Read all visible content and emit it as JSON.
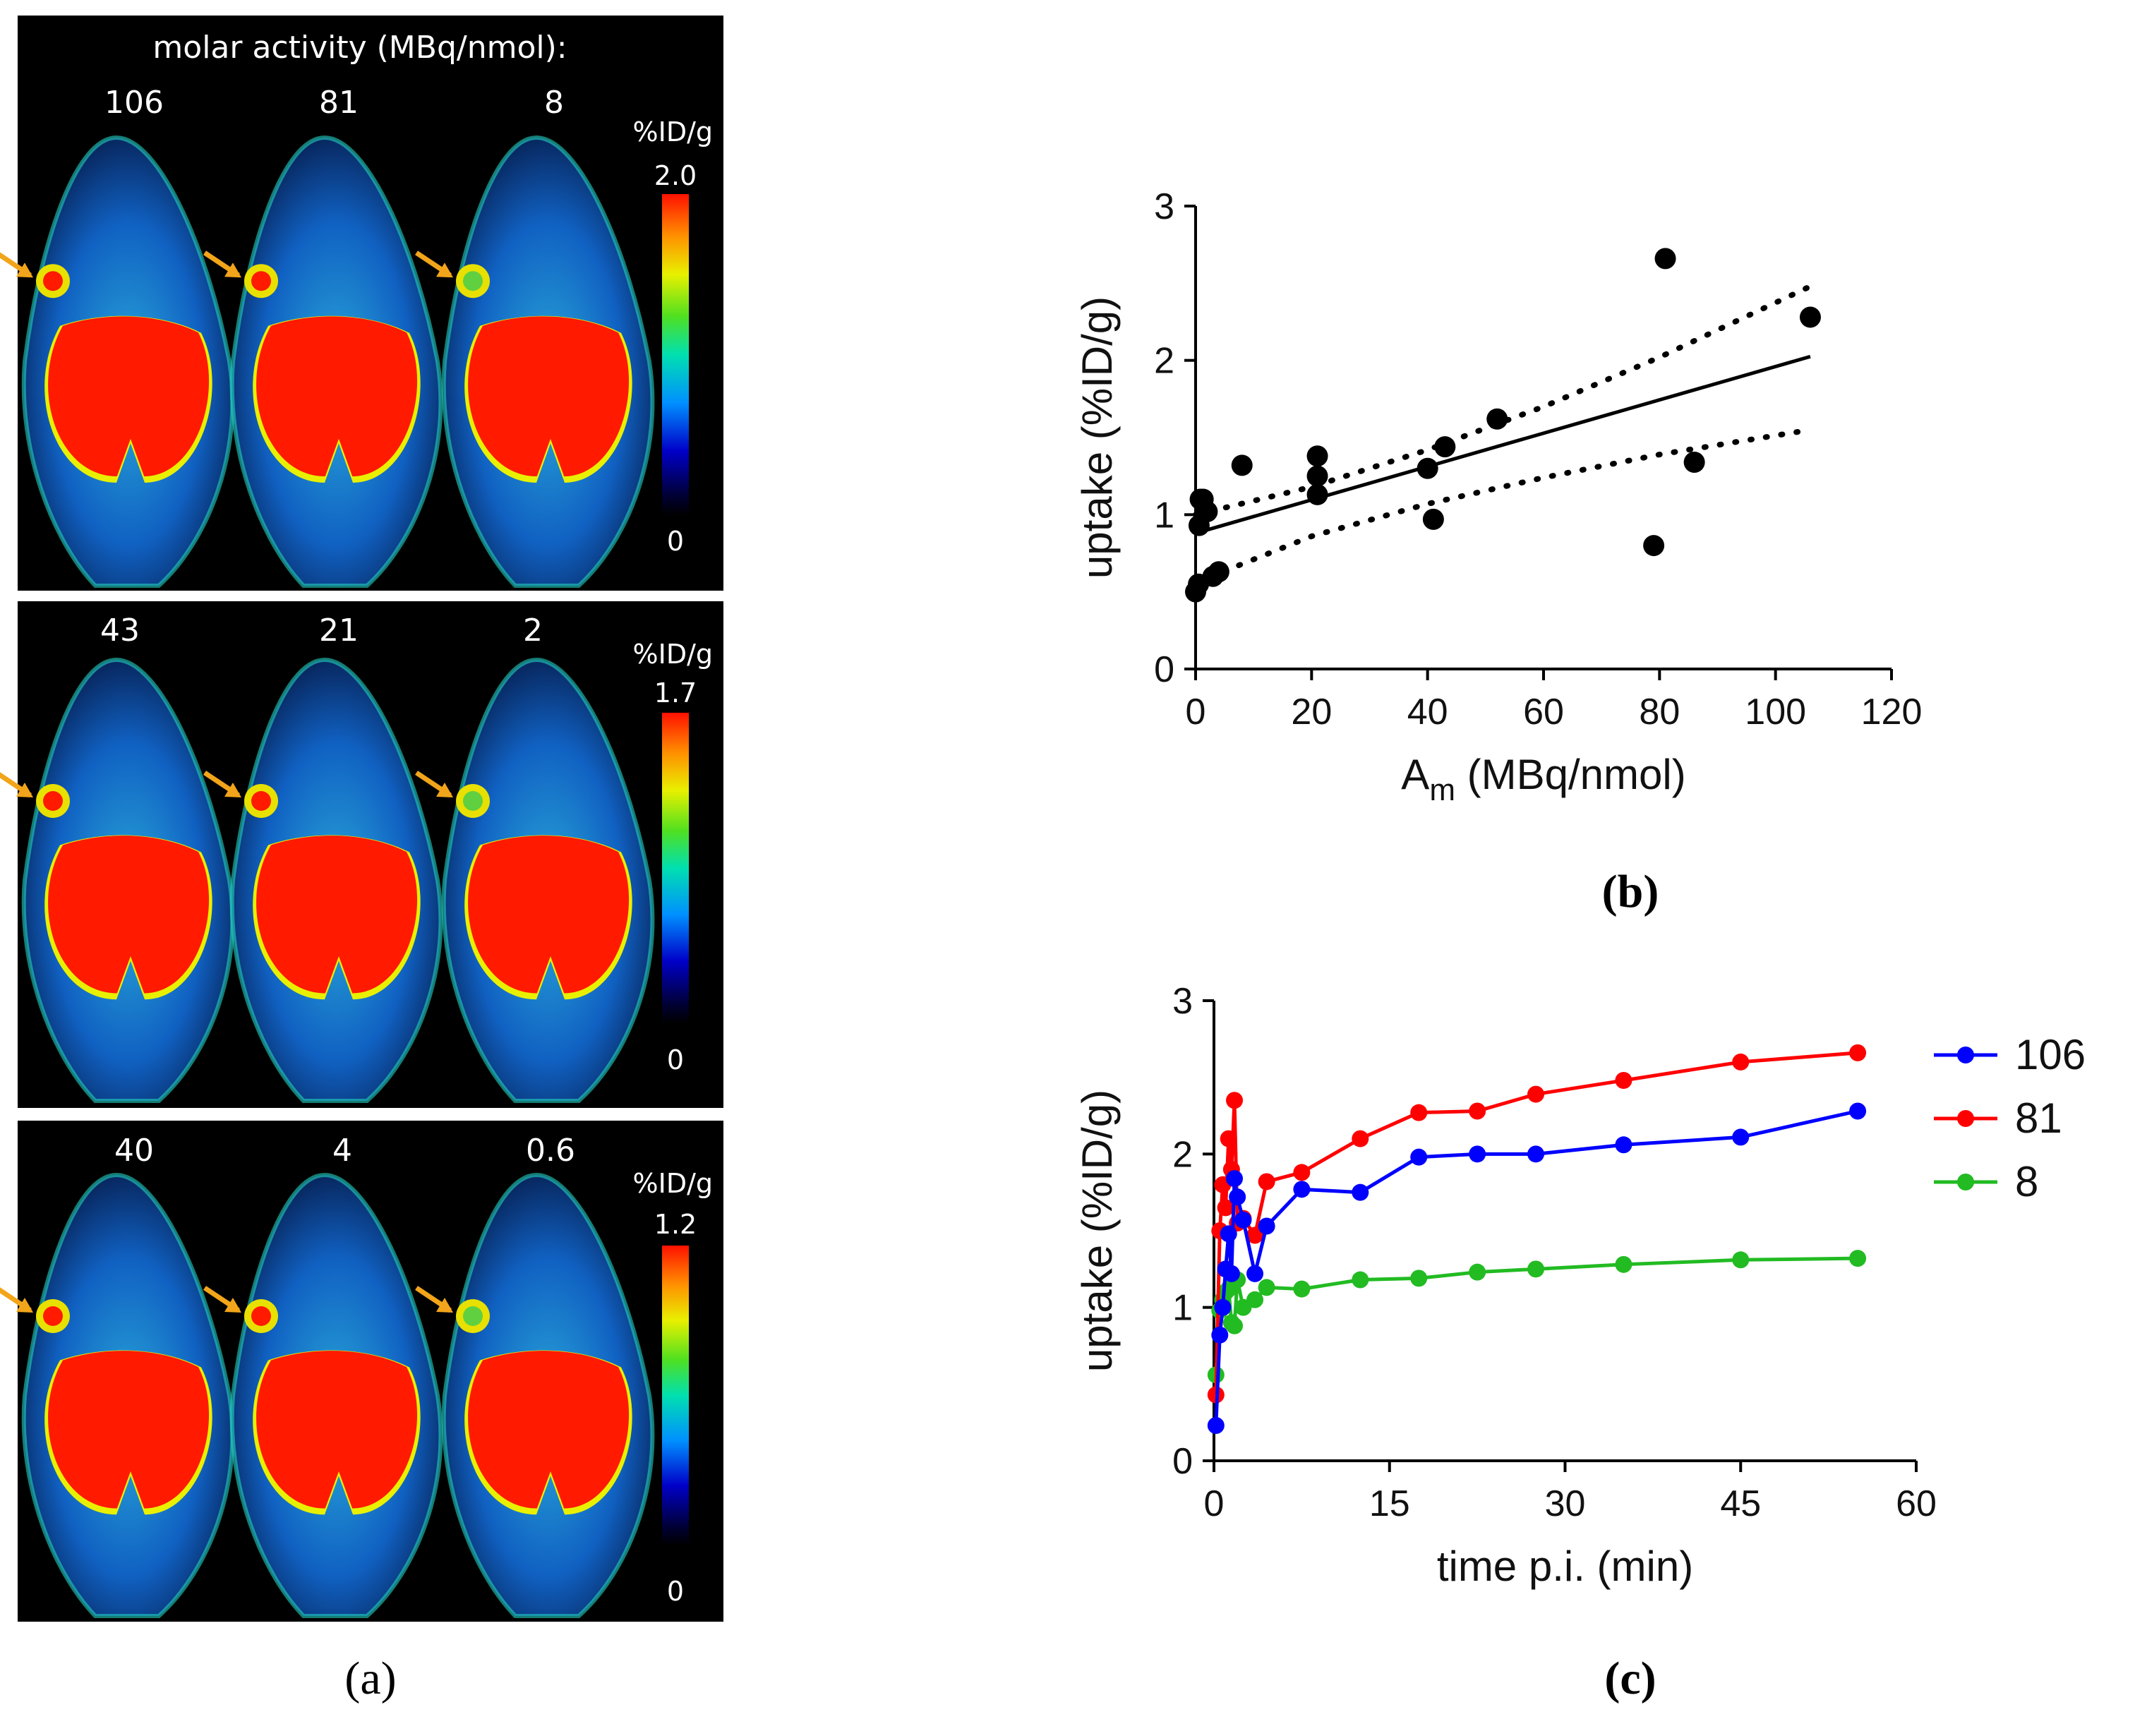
{
  "panel_a": {
    "label": "(a)",
    "title": "molar activity (MBq/nmol):",
    "unit_label": "%ID/g",
    "scale_min": "0",
    "rows": [
      {
        "activities": [
          "106",
          "81",
          "8"
        ],
        "scale_max": "2.0"
      },
      {
        "activities": [
          "43",
          "21",
          "2"
        ],
        "scale_max": "1.7"
      },
      {
        "activities": [
          "40",
          "4",
          "0.6"
        ],
        "scale_max": "1.2"
      }
    ],
    "colors": {
      "hot": "#ff1a00",
      "arrow": "#f2a51a"
    }
  },
  "chart_data": [
    {
      "type": "scatter",
      "panel_label": "(b)",
      "xlabel_main": "A",
      "xlabel_sub": "m",
      "xlabel_rest": " (MBq/nmol)",
      "ylabel": "uptake (%ID/g)",
      "xlim": [
        0,
        120
      ],
      "ylim": [
        0,
        3
      ],
      "xticks": [
        0,
        20,
        40,
        60,
        80,
        100,
        120
      ],
      "yticks": [
        0,
        1,
        2,
        3
      ],
      "points": [
        [
          0,
          0.5
        ],
        [
          0.5,
          0.55
        ],
        [
          0.6,
          0.93
        ],
        [
          0.8,
          1.1
        ],
        [
          1.3,
          1.1
        ],
        [
          2,
          1.02
        ],
        [
          3,
          0.6
        ],
        [
          4,
          0.63
        ],
        [
          8,
          1.32
        ],
        [
          21,
          1.38
        ],
        [
          21,
          1.25
        ],
        [
          21,
          1.13
        ],
        [
          40,
          1.3
        ],
        [
          41,
          0.97
        ],
        [
          43,
          1.44
        ],
        [
          52,
          1.62
        ],
        [
          79,
          0.8
        ],
        [
          81,
          2.66
        ],
        [
          86,
          1.34
        ],
        [
          106,
          2.28
        ]
      ],
      "fit": {
        "slope": 0.0108,
        "intercept": 0.88,
        "x_range": [
          0,
          106
        ]
      },
      "ci_upper": [
        [
          0,
          1.0
        ],
        [
          20,
          1.18
        ],
        [
          40,
          1.42
        ],
        [
          60,
          1.7
        ],
        [
          80,
          2.02
        ],
        [
          106,
          2.48
        ]
      ],
      "ci_lower": [
        [
          0,
          0.56
        ],
        [
          20,
          0.86
        ],
        [
          40,
          1.07
        ],
        [
          60,
          1.24
        ],
        [
          80,
          1.39
        ],
        [
          106,
          1.55
        ]
      ]
    },
    {
      "type": "line",
      "panel_label": "(c)",
      "xlabel": "time p.i. (min)",
      "ylabel": "uptake (%ID/g)",
      "xlim": [
        0,
        60
      ],
      "ylim": [
        0,
        3
      ],
      "xticks": [
        0,
        15,
        30,
        45,
        60
      ],
      "yticks": [
        0,
        1,
        2,
        3
      ],
      "legend_position": "right",
      "series": [
        {
          "name": "106",
          "color": "#0000ff",
          "x": [
            0.17,
            0.5,
            0.75,
            1.0,
            1.25,
            1.5,
            1.75,
            2.0,
            2.5,
            3.5,
            4.5,
            7.5,
            12.5,
            17.5,
            22.5,
            27.5,
            35,
            45,
            55
          ],
          "y": [
            0.23,
            0.82,
            1.0,
            1.25,
            1.48,
            1.22,
            1.84,
            1.72,
            1.57,
            1.22,
            1.53,
            1.77,
            1.75,
            1.98,
            2.0,
            2.0,
            2.06,
            2.11,
            2.28
          ]
        },
        {
          "name": "81",
          "color": "#ff0000",
          "x": [
            0.17,
            0.5,
            0.75,
            1.0,
            1.25,
            1.5,
            1.75,
            2.0,
            2.5,
            3.5,
            4.5,
            7.5,
            12.5,
            17.5,
            22.5,
            27.5,
            35,
            45,
            55
          ],
          "y": [
            0.43,
            1.5,
            1.8,
            1.65,
            2.1,
            1.9,
            2.35,
            1.55,
            1.58,
            1.47,
            1.82,
            1.88,
            2.1,
            2.27,
            2.28,
            2.39,
            2.48,
            2.6,
            2.66
          ]
        },
        {
          "name": "8",
          "color": "#22bb22",
          "x": [
            0.17,
            0.5,
            0.75,
            1.0,
            1.25,
            1.5,
            1.75,
            2.0,
            2.5,
            3.5,
            4.5,
            7.5,
            12.5,
            17.5,
            22.5,
            27.5,
            35,
            45,
            55
          ],
          "y": [
            0.56,
            0.98,
            1.05,
            1.1,
            1.12,
            0.9,
            0.88,
            1.18,
            1.0,
            1.05,
            1.13,
            1.12,
            1.18,
            1.19,
            1.23,
            1.25,
            1.28,
            1.31,
            1.32
          ]
        }
      ]
    }
  ]
}
